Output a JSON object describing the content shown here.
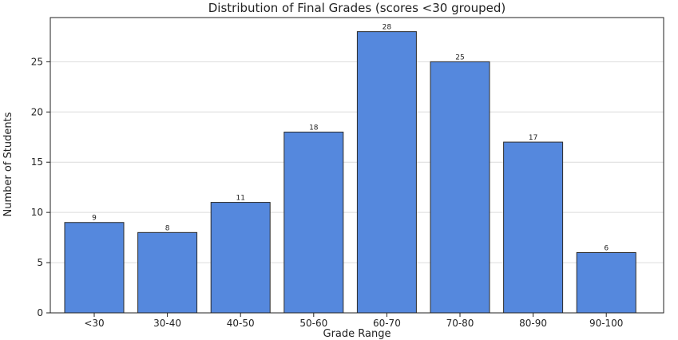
{
  "chart_data": {
    "type": "bar",
    "title": "Distribution of Final Grades (scores <30 grouped)",
    "xlabel": "Grade Range",
    "ylabel": "Number of Students",
    "categories": [
      "<30",
      "30-40",
      "40-50",
      "50-60",
      "60-70",
      "70-80",
      "80-90",
      "90-100"
    ],
    "values": [
      9,
      8,
      11,
      18,
      28,
      25,
      17,
      6
    ],
    "ylim": [
      0,
      29.4
    ],
    "yticks": [
      0,
      5,
      10,
      15,
      20,
      25
    ],
    "grid": "y",
    "bar_color": "#5588dd",
    "edge_color": "#2b2b2b"
  }
}
